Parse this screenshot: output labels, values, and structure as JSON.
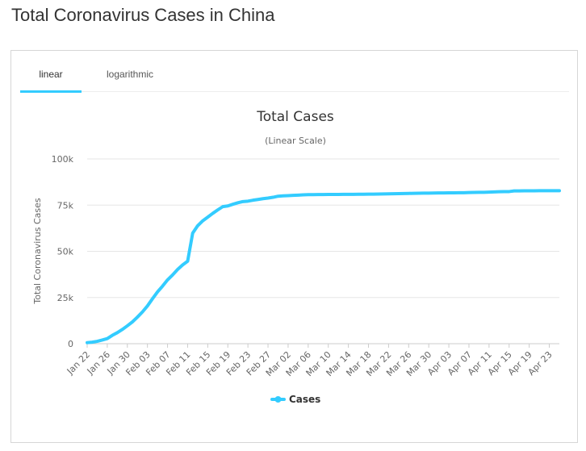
{
  "page": {
    "title": "Total Coronavirus Cases in China"
  },
  "tabs": [
    {
      "label": "linear",
      "active": true
    },
    {
      "label": "logarithmic",
      "active": false
    }
  ],
  "colors": {
    "accent": "#33ccff",
    "series": "#33ccff"
  },
  "chart_data": {
    "type": "line",
    "title": "Total Cases",
    "subtitle": "(Linear Scale)",
    "xlabel": "",
    "ylabel": "Total Coronavirus Cases",
    "ylim": [
      0,
      100000
    ],
    "yticks": [
      0,
      25000,
      50000,
      75000,
      100000
    ],
    "ytick_labels": [
      "0",
      "25k",
      "50k",
      "75k",
      "100k"
    ],
    "x_tick_labels": [
      "Jan 22",
      "Jan 26",
      "Jan 30",
      "Feb 03",
      "Feb 07",
      "Feb 11",
      "Feb 15",
      "Feb 19",
      "Feb 23",
      "Feb 27",
      "Mar 02",
      "Mar 06",
      "Mar 10",
      "Mar 14",
      "Mar 18",
      "Mar 22",
      "Mar 26",
      "Mar 30",
      "Apr 03",
      "Apr 07",
      "Apr 11",
      "Apr 15",
      "Apr 19",
      "Apr 23"
    ],
    "x": [
      "Jan 22",
      "Jan 23",
      "Jan 24",
      "Jan 25",
      "Jan 26",
      "Jan 27",
      "Jan 28",
      "Jan 29",
      "Jan 30",
      "Jan 31",
      "Feb 01",
      "Feb 02",
      "Feb 03",
      "Feb 04",
      "Feb 05",
      "Feb 06",
      "Feb 07",
      "Feb 08",
      "Feb 09",
      "Feb 10",
      "Feb 11",
      "Feb 12",
      "Feb 13",
      "Feb 14",
      "Feb 15",
      "Feb 16",
      "Feb 17",
      "Feb 18",
      "Feb 19",
      "Feb 20",
      "Feb 21",
      "Feb 22",
      "Feb 23",
      "Feb 24",
      "Feb 25",
      "Feb 26",
      "Feb 27",
      "Feb 28",
      "Feb 29",
      "Mar 01",
      "Mar 02",
      "Mar 03",
      "Mar 04",
      "Mar 05",
      "Mar 06",
      "Mar 07",
      "Mar 08",
      "Mar 09",
      "Mar 10",
      "Mar 11",
      "Mar 12",
      "Mar 13",
      "Mar 14",
      "Mar 15",
      "Mar 16",
      "Mar 17",
      "Mar 18",
      "Mar 19",
      "Mar 20",
      "Mar 21",
      "Mar 22",
      "Mar 23",
      "Mar 24",
      "Mar 25",
      "Mar 26",
      "Mar 27",
      "Mar 28",
      "Mar 29",
      "Mar 30",
      "Mar 31",
      "Apr 01",
      "Apr 02",
      "Apr 03",
      "Apr 04",
      "Apr 05",
      "Apr 06",
      "Apr 07",
      "Apr 08",
      "Apr 09",
      "Apr 10",
      "Apr 11",
      "Apr 12",
      "Apr 13",
      "Apr 14",
      "Apr 15",
      "Apr 16",
      "Apr 17",
      "Apr 18",
      "Apr 19",
      "Apr 20",
      "Apr 21",
      "Apr 22",
      "Apr 23",
      "Apr 24",
      "Apr 25"
    ],
    "series": [
      {
        "name": "Cases",
        "values": [
          571,
          830,
          1287,
          1975,
          2744,
          4515,
          5974,
          7711,
          9692,
          11791,
          14380,
          17205,
          20438,
          24324,
          28018,
          31161,
          34546,
          37198,
          40171,
          42638,
          44653,
          59804,
          63851,
          66492,
          68500,
          70548,
          72436,
          74185,
          74576,
          75465,
          76288,
          76936,
          77150,
          77658,
          78064,
          78497,
          78824,
          79251,
          79824,
          80026,
          80151,
          80270,
          80409,
          80552,
          80651,
          80695,
          80735,
          80754,
          80778,
          80793,
          80813,
          80824,
          80844,
          80860,
          80881,
          80894,
          80928,
          80967,
          81008,
          81054,
          81093,
          81171,
          81218,
          81285,
          81340,
          81394,
          81439,
          81470,
          81518,
          81554,
          81589,
          81620,
          81639,
          81669,
          81708,
          81740,
          81802,
          81865,
          81907,
          81953,
          82052,
          82160,
          82249,
          82295,
          82341,
          82692,
          82719,
          82735,
          82747,
          82758,
          82788,
          82798,
          82804,
          82816,
          82827
        ]
      }
    ],
    "legend": "bottom-center",
    "grid": true
  }
}
